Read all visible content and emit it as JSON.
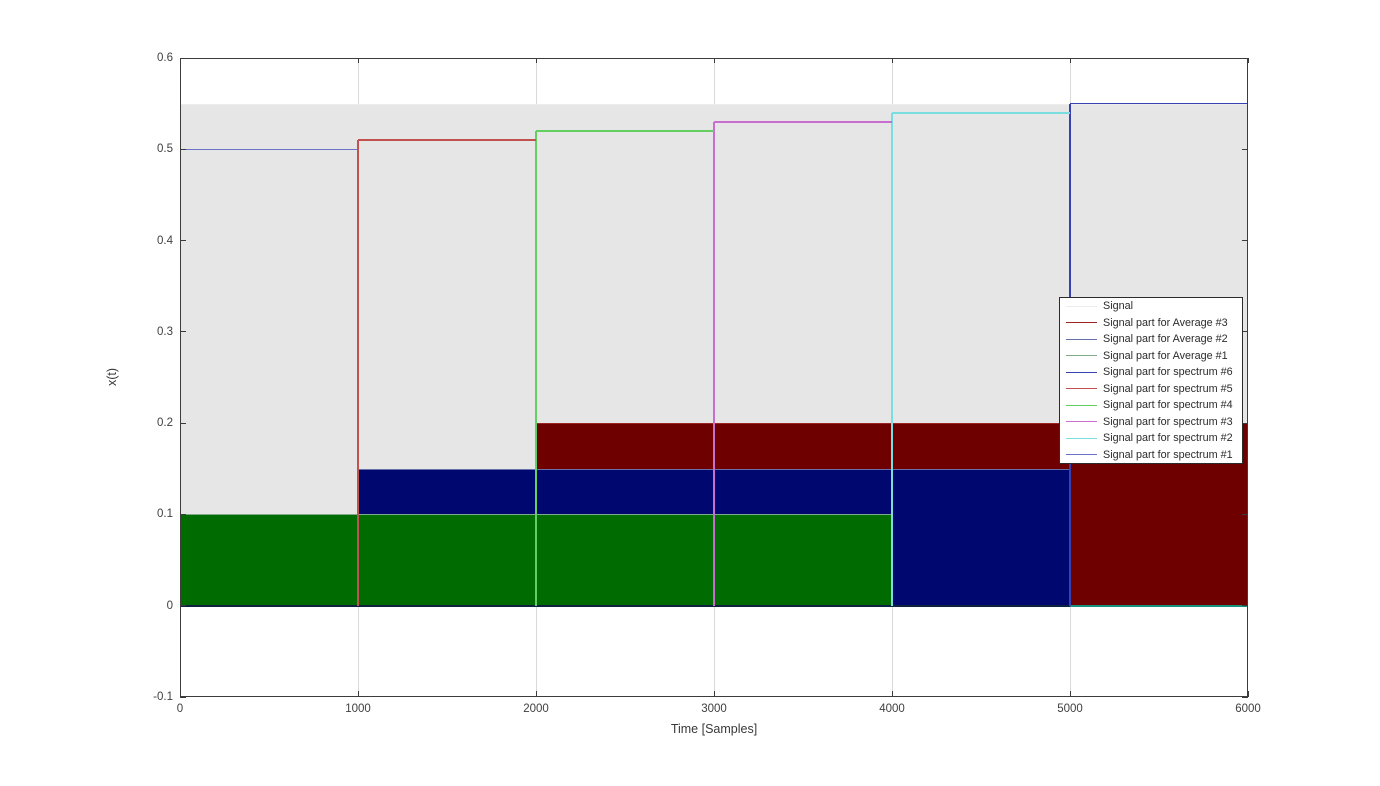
{
  "figure": {
    "background": "#ffffff",
    "axes_box_color": "#3c3c3c",
    "grid_color": "#d9d9d9",
    "tick_label_color": "#3f3f3f"
  },
  "chart_data": {
    "type": "line",
    "title": "",
    "xlabel": "Time [Samples]",
    "ylabel": "x(t)",
    "xlim": [
      0,
      6000
    ],
    "ylim": [
      -0.1,
      0.6
    ],
    "x_tick_values": [
      0,
      1000,
      2000,
      3000,
      4000,
      5000,
      6000
    ],
    "x_tick_labels": [
      "0",
      "1000",
      "2000",
      "3000",
      "4000",
      "5000",
      "6000"
    ],
    "y_tick_values": [
      -0.1,
      0,
      0.1,
      0.2,
      0.3,
      0.4,
      0.5,
      0.6
    ],
    "y_tick_labels": [
      "-0.1",
      "0",
      "0.1",
      "0.2",
      "0.3",
      "0.4",
      "0.5",
      "0.6"
    ],
    "grid": "vertical-only",
    "legend_position": "right-middle",
    "series": [
      {
        "name": "Signal",
        "kind": "area",
        "x": [
          0,
          6000
        ],
        "top": 0.55,
        "base": 0,
        "fill_color": "#e6e6e6",
        "legend_color": "#ededed"
      },
      {
        "name": "Signal part for Average #3",
        "kind": "area",
        "x": [
          2000,
          6000
        ],
        "top": 0.2,
        "base": 0,
        "fill_color": "#6e0000",
        "legend_color": "#9c2424"
      },
      {
        "name": "Signal part for Average #2",
        "kind": "area",
        "x": [
          1000,
          5000
        ],
        "top": 0.15,
        "base": 0,
        "fill_color": "#000870",
        "legend_color": "#6671aa"
      },
      {
        "name": "Signal part for Average #1",
        "kind": "area",
        "x": [
          0,
          4000
        ],
        "top": 0.1,
        "base": 0,
        "fill_color": "#006b00",
        "legend_color": "#7fab8a"
      },
      {
        "name": "Signal part for spectrum #6",
        "kind": "step",
        "x": [
          5000,
          6000
        ],
        "level": 0.55,
        "color": "#3742b0"
      },
      {
        "name": "Signal part for spectrum #5",
        "kind": "step",
        "x": [
          1000,
          2000
        ],
        "level": 0.51,
        "color": "#c25250"
      },
      {
        "name": "Signal part for spectrum #4",
        "kind": "step",
        "x": [
          2000,
          3000
        ],
        "level": 0.52,
        "color": "#63cf63"
      },
      {
        "name": "Signal part for spectrum #3",
        "kind": "step",
        "x": [
          3000,
          4000
        ],
        "level": 0.53,
        "color": "#c76ecf"
      },
      {
        "name": "Signal part for spectrum #2",
        "kind": "step",
        "x": [
          4000,
          5000
        ],
        "level": 0.54,
        "color": "#7adde0"
      },
      {
        "name": "Signal part for spectrum #1",
        "kind": "step",
        "x": [
          0,
          1000
        ],
        "level": 0.5,
        "color": "#6a73c8"
      }
    ],
    "baseline_edges": [
      {
        "x": [
          0,
          5000
        ],
        "color": "#0d2240"
      },
      {
        "x": [
          5000,
          6000
        ],
        "color": "#18927c"
      }
    ]
  }
}
